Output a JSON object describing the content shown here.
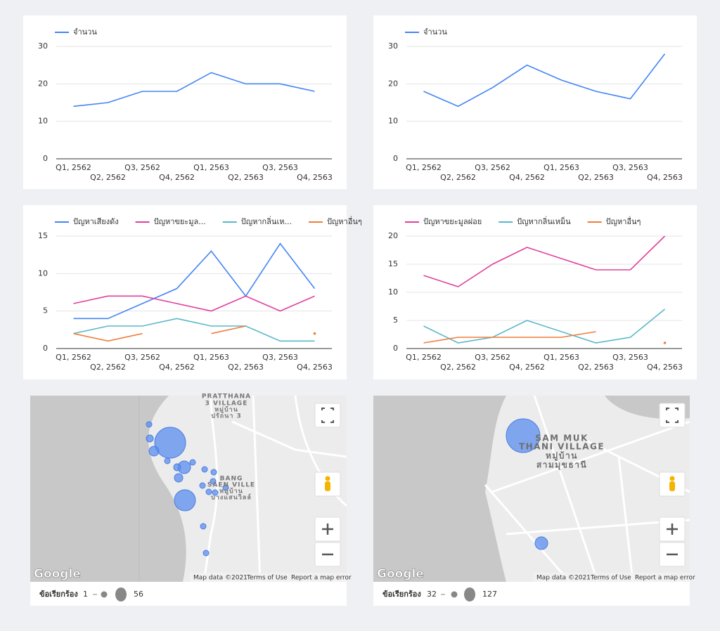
{
  "chart_data": [
    {
      "type": "line",
      "categories": [
        "Q1, 2562",
        "Q2, 2562",
        "Q3, 2562",
        "Q4, 2562",
        "Q1, 2563",
        "Q2, 2563",
        "Q3, 2563",
        "Q4, 2563"
      ],
      "series": [
        {
          "name": "จำนวน",
          "color": "#4285f4",
          "values": [
            14,
            15,
            18,
            18,
            23,
            20,
            20,
            18
          ]
        }
      ],
      "ylim": [
        0,
        30
      ],
      "yticks": [
        0,
        10,
        20,
        30
      ],
      "grid": true
    },
    {
      "type": "line",
      "categories": [
        "Q1, 2562",
        "Q2, 2562",
        "Q3, 2562",
        "Q4, 2562",
        "Q1, 2563",
        "Q2, 2563",
        "Q3, 2563",
        "Q4, 2563"
      ],
      "series": [
        {
          "name": "จำนวน",
          "color": "#4285f4",
          "values": [
            18,
            14,
            19,
            25,
            21,
            18,
            16,
            28
          ]
        }
      ],
      "ylim": [
        0,
        30
      ],
      "yticks": [
        0,
        10,
        20,
        30
      ],
      "grid": true
    },
    {
      "type": "line",
      "categories": [
        "Q1, 2562",
        "Q2, 2562",
        "Q3, 2562",
        "Q4, 2562",
        "Q1, 2563",
        "Q2, 2563",
        "Q3, 2563",
        "Q4, 2563"
      ],
      "series": [
        {
          "name": "ปัญหาเสียงดัง",
          "color": "#4285f4",
          "values": [
            4,
            4,
            6,
            8,
            13,
            7,
            14,
            8
          ]
        },
        {
          "name": "ปัญหาขยะมูล...",
          "color": "#e0409c",
          "values": [
            6,
            7,
            7,
            6,
            5,
            7,
            5,
            7
          ]
        },
        {
          "name": "ปัญหากลิ่นเห...",
          "color": "#5bb8c9",
          "values": [
            2,
            3,
            3,
            4,
            3,
            3,
            1,
            1
          ]
        },
        {
          "name": "ปัญหาอื่นๆ",
          "color": "#ef7d3c",
          "values": [
            2,
            1,
            2,
            null,
            2,
            3,
            null,
            2
          ]
        }
      ],
      "ylim": [
        0,
        15
      ],
      "yticks": [
        0,
        5,
        10,
        15
      ],
      "grid": true
    },
    {
      "type": "line",
      "categories": [
        "Q1, 2562",
        "Q2, 2562",
        "Q3, 2562",
        "Q4, 2562",
        "Q1, 2563",
        "Q2, 2563",
        "Q3, 2563",
        "Q4, 2563"
      ],
      "series": [
        {
          "name": "ปัญหาขยะมูลฝอย",
          "color": "#e0409c",
          "values": [
            13,
            11,
            15,
            18,
            16,
            14,
            14,
            20
          ]
        },
        {
          "name": "ปัญหากลิ่นเหม็น",
          "color": "#5bb8c9",
          "values": [
            4,
            1,
            2,
            5,
            3,
            1,
            2,
            7
          ]
        },
        {
          "name": "ปัญหาอื่นๆ",
          "color": "#ef7d3c",
          "values": [
            1,
            2,
            2,
            2,
            2,
            3,
            null,
            1
          ]
        }
      ],
      "ylim": [
        0,
        20
      ],
      "yticks": [
        0,
        5,
        10,
        15,
        20
      ],
      "grid": true
    }
  ],
  "maps": [
    {
      "labels": [
        "PRATTHANA",
        "3 VILLAGE",
        "หมู่บ้าน",
        "ปรัถนา 3",
        "BANG",
        "SAEN VILLE",
        "หมู่บ้าน",
        "บางแสนวิลล์"
      ],
      "logo": "Google",
      "attribution": [
        "Map data ©2021",
        "Terms of Use",
        "Report a map error"
      ],
      "legend": {
        "title": "ข้อเรียกร้อง",
        "min": 1,
        "max": 56
      }
    },
    {
      "labels": [
        "SAM MUK",
        "THANI VILLAGE",
        "หมู่บ้าน",
        "สามมุขธานี"
      ],
      "logo": "Google",
      "attribution": [
        "Map data ©2021",
        "Terms of Use",
        "Report a map error"
      ],
      "legend": {
        "title": "ข้อเรียกร้อง",
        "min": 32,
        "max": 127
      }
    }
  ]
}
